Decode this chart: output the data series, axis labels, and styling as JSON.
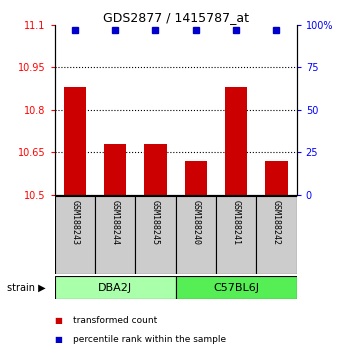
{
  "title": "GDS2877 / 1415787_at",
  "samples": [
    "GSM188243",
    "GSM188244",
    "GSM188245",
    "GSM188240",
    "GSM188241",
    "GSM188242"
  ],
  "group_labels": [
    "DBA2J",
    "C57BL6J"
  ],
  "transformed_counts": [
    10.88,
    10.68,
    10.68,
    10.62,
    10.88,
    10.62
  ],
  "percentile_ranks": [
    97,
    97,
    97,
    97,
    97,
    97
  ],
  "ylim_left": [
    10.5,
    11.1
  ],
  "yticks_left": [
    10.5,
    10.65,
    10.8,
    10.95,
    11.1
  ],
  "ytick_labels_left": [
    "10.5",
    "10.65",
    "10.8",
    "10.95",
    "11.1"
  ],
  "ylim_right": [
    0,
    100
  ],
  "yticks_right": [
    0,
    25,
    50,
    75,
    100
  ],
  "ytick_labels_right": [
    "0",
    "25",
    "50",
    "75",
    "100%"
  ],
  "bar_color": "#cc0000",
  "dot_color": "#0000cc",
  "bar_width": 0.55,
  "sample_box_color": "#cccccc",
  "group_box_colors": [
    "#aaffaa",
    "#55ee55"
  ],
  "legend_items": [
    {
      "color": "#cc0000",
      "label": "transformed count"
    },
    {
      "color": "#0000cc",
      "label": "percentile rank within the sample"
    }
  ],
  "title_fontsize": 9,
  "tick_fontsize": 7,
  "sample_fontsize": 6,
  "group_fontsize": 8
}
